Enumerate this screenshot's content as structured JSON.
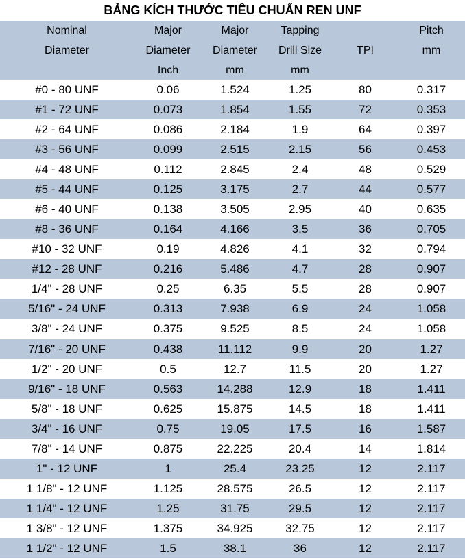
{
  "title": "BẢNG KÍCH THƯỚC TIÊU CHUẨN REN UNF",
  "header": [
    [
      "Nominal",
      "Diameter"
    ],
    [
      "Major",
      "Diameter",
      "Inch"
    ],
    [
      "Major",
      "Diameter",
      "mm"
    ],
    [
      "Tapping",
      "Drill Size",
      "mm"
    ],
    [
      "TPI"
    ],
    [
      "Pitch",
      "mm"
    ]
  ],
  "rows": [
    [
      "#0 - 80 UNF",
      "0.06",
      "1.524",
      "1.25",
      "80",
      "0.317"
    ],
    [
      "#1 - 72 UNF",
      "0.073",
      "1.854",
      "1.55",
      "72",
      "0.353"
    ],
    [
      "#2 - 64 UNF",
      "0.086",
      "2.184",
      "1.9",
      "64",
      "0.397"
    ],
    [
      "#3 - 56 UNF",
      "0.099",
      "2.515",
      "2.15",
      "56",
      "0.453"
    ],
    [
      "#4 - 48 UNF",
      "0.112",
      "2.845",
      "2.4",
      "48",
      "0.529"
    ],
    [
      "#5 - 44 UNF",
      "0.125",
      "3.175",
      "2.7",
      "44",
      "0.577"
    ],
    [
      "#6 - 40 UNF",
      "0.138",
      "3.505",
      "2.95",
      "40",
      "0.635"
    ],
    [
      "#8 - 36 UNF",
      "0.164",
      "4.166",
      "3.5",
      "36",
      "0.705"
    ],
    [
      "#10 - 32 UNF",
      "0.19",
      "4.826",
      "4.1",
      "32",
      "0.794"
    ],
    [
      "#12 - 28 UNF",
      "0.216",
      "5.486",
      "4.7",
      "28",
      "0.907"
    ],
    [
      "1/4\" - 28 UNF",
      "0.25",
      "6.35",
      "5.5",
      "28",
      "0.907"
    ],
    [
      "5/16\" - 24 UNF",
      "0.313",
      "7.938",
      "6.9",
      "24",
      "1.058"
    ],
    [
      "3/8\" - 24 UNF",
      "0.375",
      "9.525",
      "8.5",
      "24",
      "1.058"
    ],
    [
      "7/16\" - 20 UNF",
      "0.438",
      "11.112",
      "9.9",
      "20",
      "1.27"
    ],
    [
      "1/2\" - 20 UNF",
      "0.5",
      "12.7",
      "11.5",
      "20",
      "1.27"
    ],
    [
      "9/16\" - 18 UNF",
      "0.563",
      "14.288",
      "12.9",
      "18",
      "1.411"
    ],
    [
      "5/8\" - 18 UNF",
      "0.625",
      "15.875",
      "14.5",
      "18",
      "1.411"
    ],
    [
      "3/4\" - 16 UNF",
      "0.75",
      "19.05",
      "17.5",
      "16",
      "1.587"
    ],
    [
      "7/8\" - 14 UNF",
      "0.875",
      "22.225",
      "20.4",
      "14",
      "1.814"
    ],
    [
      "1\" - 12 UNF",
      "1",
      "25.4",
      "23.25",
      "12",
      "2.117"
    ],
    [
      "1 1/8\" - 12 UNF",
      "1.125",
      "28.575",
      "26.5",
      "12",
      "2.117"
    ],
    [
      "1 1/4\" - 12 UNF",
      "1.25",
      "31.75",
      "29.5",
      "12",
      "2.117"
    ],
    [
      "1 3/8\" - 12 UNF",
      "1.375",
      "34.925",
      "32.75",
      "12",
      "2.117"
    ],
    [
      "1 1/2\" - 12 UNF",
      "1.5",
      "38.1",
      "36",
      "12",
      "2.117"
    ]
  ]
}
